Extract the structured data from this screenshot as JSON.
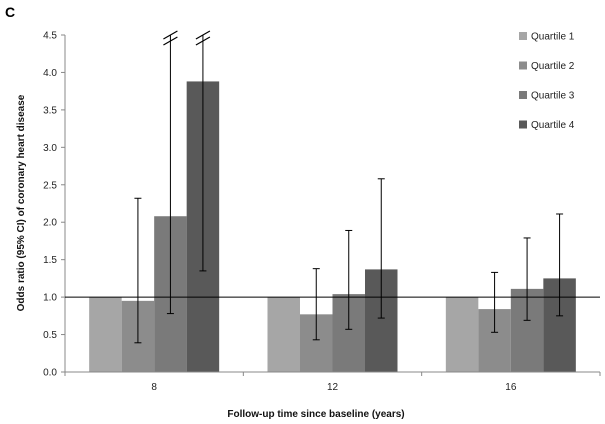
{
  "panel_label": "C",
  "chart_data": {
    "type": "bar",
    "categories": [
      "8",
      "12",
      "16"
    ],
    "xlabel": "Follow-up time since baseline (years)",
    "ylabel": "Odds ratio (95% CI) of coronary heart disease",
    "ylim": [
      0,
      4.5
    ],
    "yticks": [
      "0.0",
      "0.5",
      "1.0",
      "1.5",
      "2.0",
      "2.5",
      "3.0",
      "3.5",
      "4.0",
      "4.5"
    ],
    "reference_line": 1.0,
    "legend_position": "top-right",
    "grid": false,
    "series": [
      {
        "name": "Quartile 1",
        "color": "#a6a6a6",
        "values": [
          1.0,
          1.0,
          1.0
        ],
        "ci_low": [
          null,
          null,
          null
        ],
        "ci_high": [
          null,
          null,
          null
        ]
      },
      {
        "name": "Quartile 2",
        "color": "#8c8c8c",
        "values": [
          0.95,
          0.77,
          0.84
        ],
        "ci_low": [
          0.39,
          0.43,
          0.53
        ],
        "ci_high": [
          2.32,
          1.38,
          1.33
        ]
      },
      {
        "name": "Quartile 3",
        "color": "#7a7a7a",
        "values": [
          2.08,
          1.04,
          1.11
        ],
        "ci_low": [
          0.78,
          0.57,
          0.69
        ],
        "ci_high": [
          4.5,
          1.89,
          1.79
        ]
      },
      {
        "name": "Quartile 4",
        "color": "#595959",
        "values": [
          3.88,
          1.37,
          1.25
        ],
        "ci_low": [
          1.35,
          0.72,
          0.75
        ],
        "ci_high": [
          4.5,
          2.58,
          2.11
        ]
      }
    ],
    "axis_breaks": [
      {
        "category": "8",
        "series": "Quartile 3"
      },
      {
        "category": "8",
        "series": "Quartile 4"
      }
    ]
  }
}
